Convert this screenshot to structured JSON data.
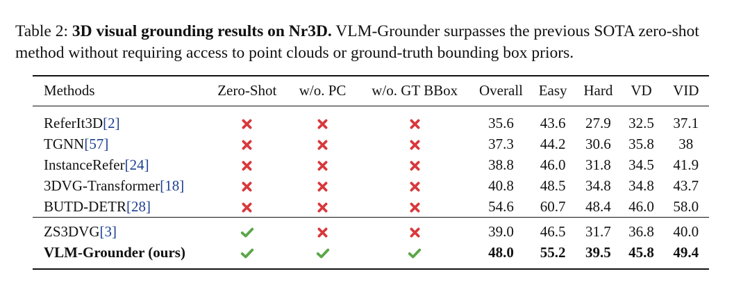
{
  "caption": {
    "label": "Table 2:",
    "title": "3D visual grounding results on Nr3D.",
    "body": "VLM-Grounder surpasses the previous SOTA zero-shot method without requiring access to point clouds or ground-truth bounding box priors."
  },
  "columns": [
    "Methods",
    "Zero-Shot",
    "w/o. PC",
    "w/o. GT BBox",
    "Overall",
    "Easy",
    "Hard",
    "VD",
    "VID"
  ],
  "colors": {
    "cross": "#d8393c",
    "check": "#5ca64a",
    "citation": "#1b3f91"
  },
  "rows": [
    {
      "method": "ReferIt3D",
      "cite": "[2]",
      "marks": [
        "cross",
        "cross",
        "cross"
      ],
      "overall": "35.6",
      "easy": "43.6",
      "hard": "27.9",
      "vd": "32.5",
      "vid": "37.1"
    },
    {
      "method": "TGNN",
      "cite": "[57]",
      "marks": [
        "cross",
        "cross",
        "cross"
      ],
      "overall": "37.3",
      "easy": "44.2",
      "hard": "30.6",
      "vd": "35.8",
      "vid": "38"
    },
    {
      "method": "InstanceRefer",
      "cite": "[24]",
      "marks": [
        "cross",
        "cross",
        "cross"
      ],
      "overall": "38.8",
      "easy": "46.0",
      "hard": "31.8",
      "vd": "34.5",
      "vid": "41.9"
    },
    {
      "method": "3DVG-Transformer",
      "cite": "[18]",
      "marks": [
        "cross",
        "cross",
        "cross"
      ],
      "overall": "40.8",
      "easy": "48.5",
      "hard": "34.8",
      "vd": "34.8",
      "vid": "43.7"
    },
    {
      "method": "BUTD-DETR",
      "cite": "[28]",
      "marks": [
        "cross",
        "cross",
        "cross"
      ],
      "overall": "54.6",
      "easy": "60.7",
      "hard": "48.4",
      "vd": "46.0",
      "vid": "58.0"
    },
    {
      "method": "ZS3DVG",
      "cite": "[3]",
      "marks": [
        "check",
        "cross",
        "cross"
      ],
      "overall": "39.0",
      "easy": "46.5",
      "hard": "31.7",
      "vd": "36.8",
      "vid": "40.0"
    },
    {
      "method": "VLM-Grounder (ours)",
      "cite": "",
      "marks": [
        "check",
        "check",
        "check"
      ],
      "overall": "48.0",
      "easy": "55.2",
      "hard": "39.5",
      "vd": "45.8",
      "vid": "49.4"
    }
  ]
}
